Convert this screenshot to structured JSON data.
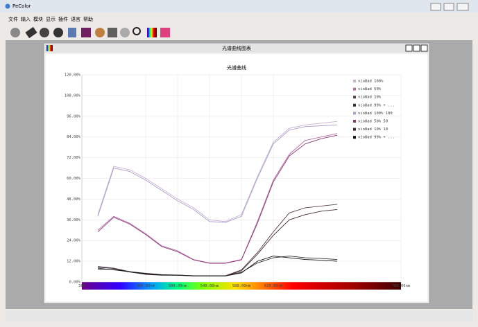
{
  "app": {
    "title": "PeColor",
    "menu": [
      "文件",
      "输入",
      "模块",
      "显示",
      "插件",
      "语言",
      "帮助"
    ],
    "window_title": "光谱曲线图表"
  },
  "chart_data": {
    "type": "line",
    "title": "光谱曲线",
    "x": [
      400,
      420,
      440,
      460,
      480,
      500,
      520,
      540,
      560,
      580,
      600,
      620,
      640,
      660,
      680,
      700
    ],
    "xlim": [
      380,
      780
    ],
    "xticks": [
      380,
      {
        "value": 460,
        "label": "460.00nm"
      },
      {
        "value": 500,
        "label": "500.00nm"
      },
      {
        "value": 540,
        "label": "540.00nm"
      },
      {
        "value": 580,
        "label": "580.00nm"
      },
      {
        "value": 620,
        "label": "620.00nm"
      },
      {
        "value": 780,
        "label": "780.00nm"
      }
    ],
    "ylim": [
      0,
      120
    ],
    "yticks": [
      {
        "value": 0,
        "label": "0.00%"
      },
      {
        "value": 12,
        "label": "12.00%"
      },
      {
        "value": 24,
        "label": "24.00%"
      },
      {
        "value": 36,
        "label": "36.00%"
      },
      {
        "value": 48,
        "label": "48.00%"
      },
      {
        "value": 60,
        "label": "60.00%"
      },
      {
        "value": 72,
        "label": "72.00%"
      },
      {
        "value": 84,
        "label": "84.00%"
      },
      {
        "value": 96,
        "label": "96.00%"
      },
      {
        "value": 108,
        "label": "108.00%"
      },
      {
        "value": 120,
        "label": "120.00%"
      }
    ],
    "grid": true,
    "series": [
      {
        "name": "vio8ad 100%",
        "color": "#c9aed6",
        "values": [
          39,
          67,
          65,
          60,
          54,
          48,
          43,
          36,
          35,
          39,
          61,
          81,
          89,
          91,
          92,
          93
        ]
      },
      {
        "name": "vio8ad 50%",
        "color": "#b56ea8",
        "values": [
          30,
          38,
          34,
          28,
          21,
          18,
          13,
          11,
          11,
          13,
          35,
          59,
          74,
          82,
          84,
          86
        ]
      },
      {
        "name": "vio8ad 10%",
        "color": "#5a4050",
        "values": [
          9,
          8,
          6,
          4.5,
          4,
          4,
          3.6,
          3.6,
          3.6,
          7,
          17,
          29,
          40,
          43,
          44,
          45
        ]
      },
      {
        "name": "vio8ad 99% + ...",
        "color": "#303030",
        "values": [
          8,
          7,
          6,
          5,
          4.2,
          4,
          3.6,
          3.6,
          3.6,
          5.6,
          11,
          14,
          15,
          14,
          13.6,
          13
        ]
      },
      {
        "name": "vio8ad 100% 100",
        "color": "#a8a0c8",
        "values": [
          38,
          66,
          64,
          59,
          53,
          47,
          42,
          35,
          34.5,
          38,
          60,
          80,
          88,
          90,
          90.5,
          91
        ]
      },
      {
        "name": "vio8ad 50% 50",
        "color": "#8a3a70",
        "values": [
          29,
          37.5,
          33.5,
          27.5,
          20.5,
          17.5,
          12.8,
          10.8,
          10.8,
          12.8,
          34,
          58,
          73,
          80,
          83,
          85
        ]
      },
      {
        "name": "vio8ad 10% 10",
        "color": "#402a38",
        "values": [
          8.5,
          7.8,
          5.8,
          4.4,
          3.9,
          3.9,
          3.5,
          3.5,
          3.5,
          6.5,
          16,
          27,
          36,
          39,
          41,
          42
        ]
      },
      {
        "name": "vio8ad 99% + ...",
        "color": "#101010",
        "values": [
          7.5,
          7.2,
          5.8,
          4.8,
          4.1,
          3.9,
          3.5,
          3.5,
          3.5,
          5.2,
          12,
          15,
          14,
          13,
          12.6,
          12
        ]
      }
    ]
  }
}
